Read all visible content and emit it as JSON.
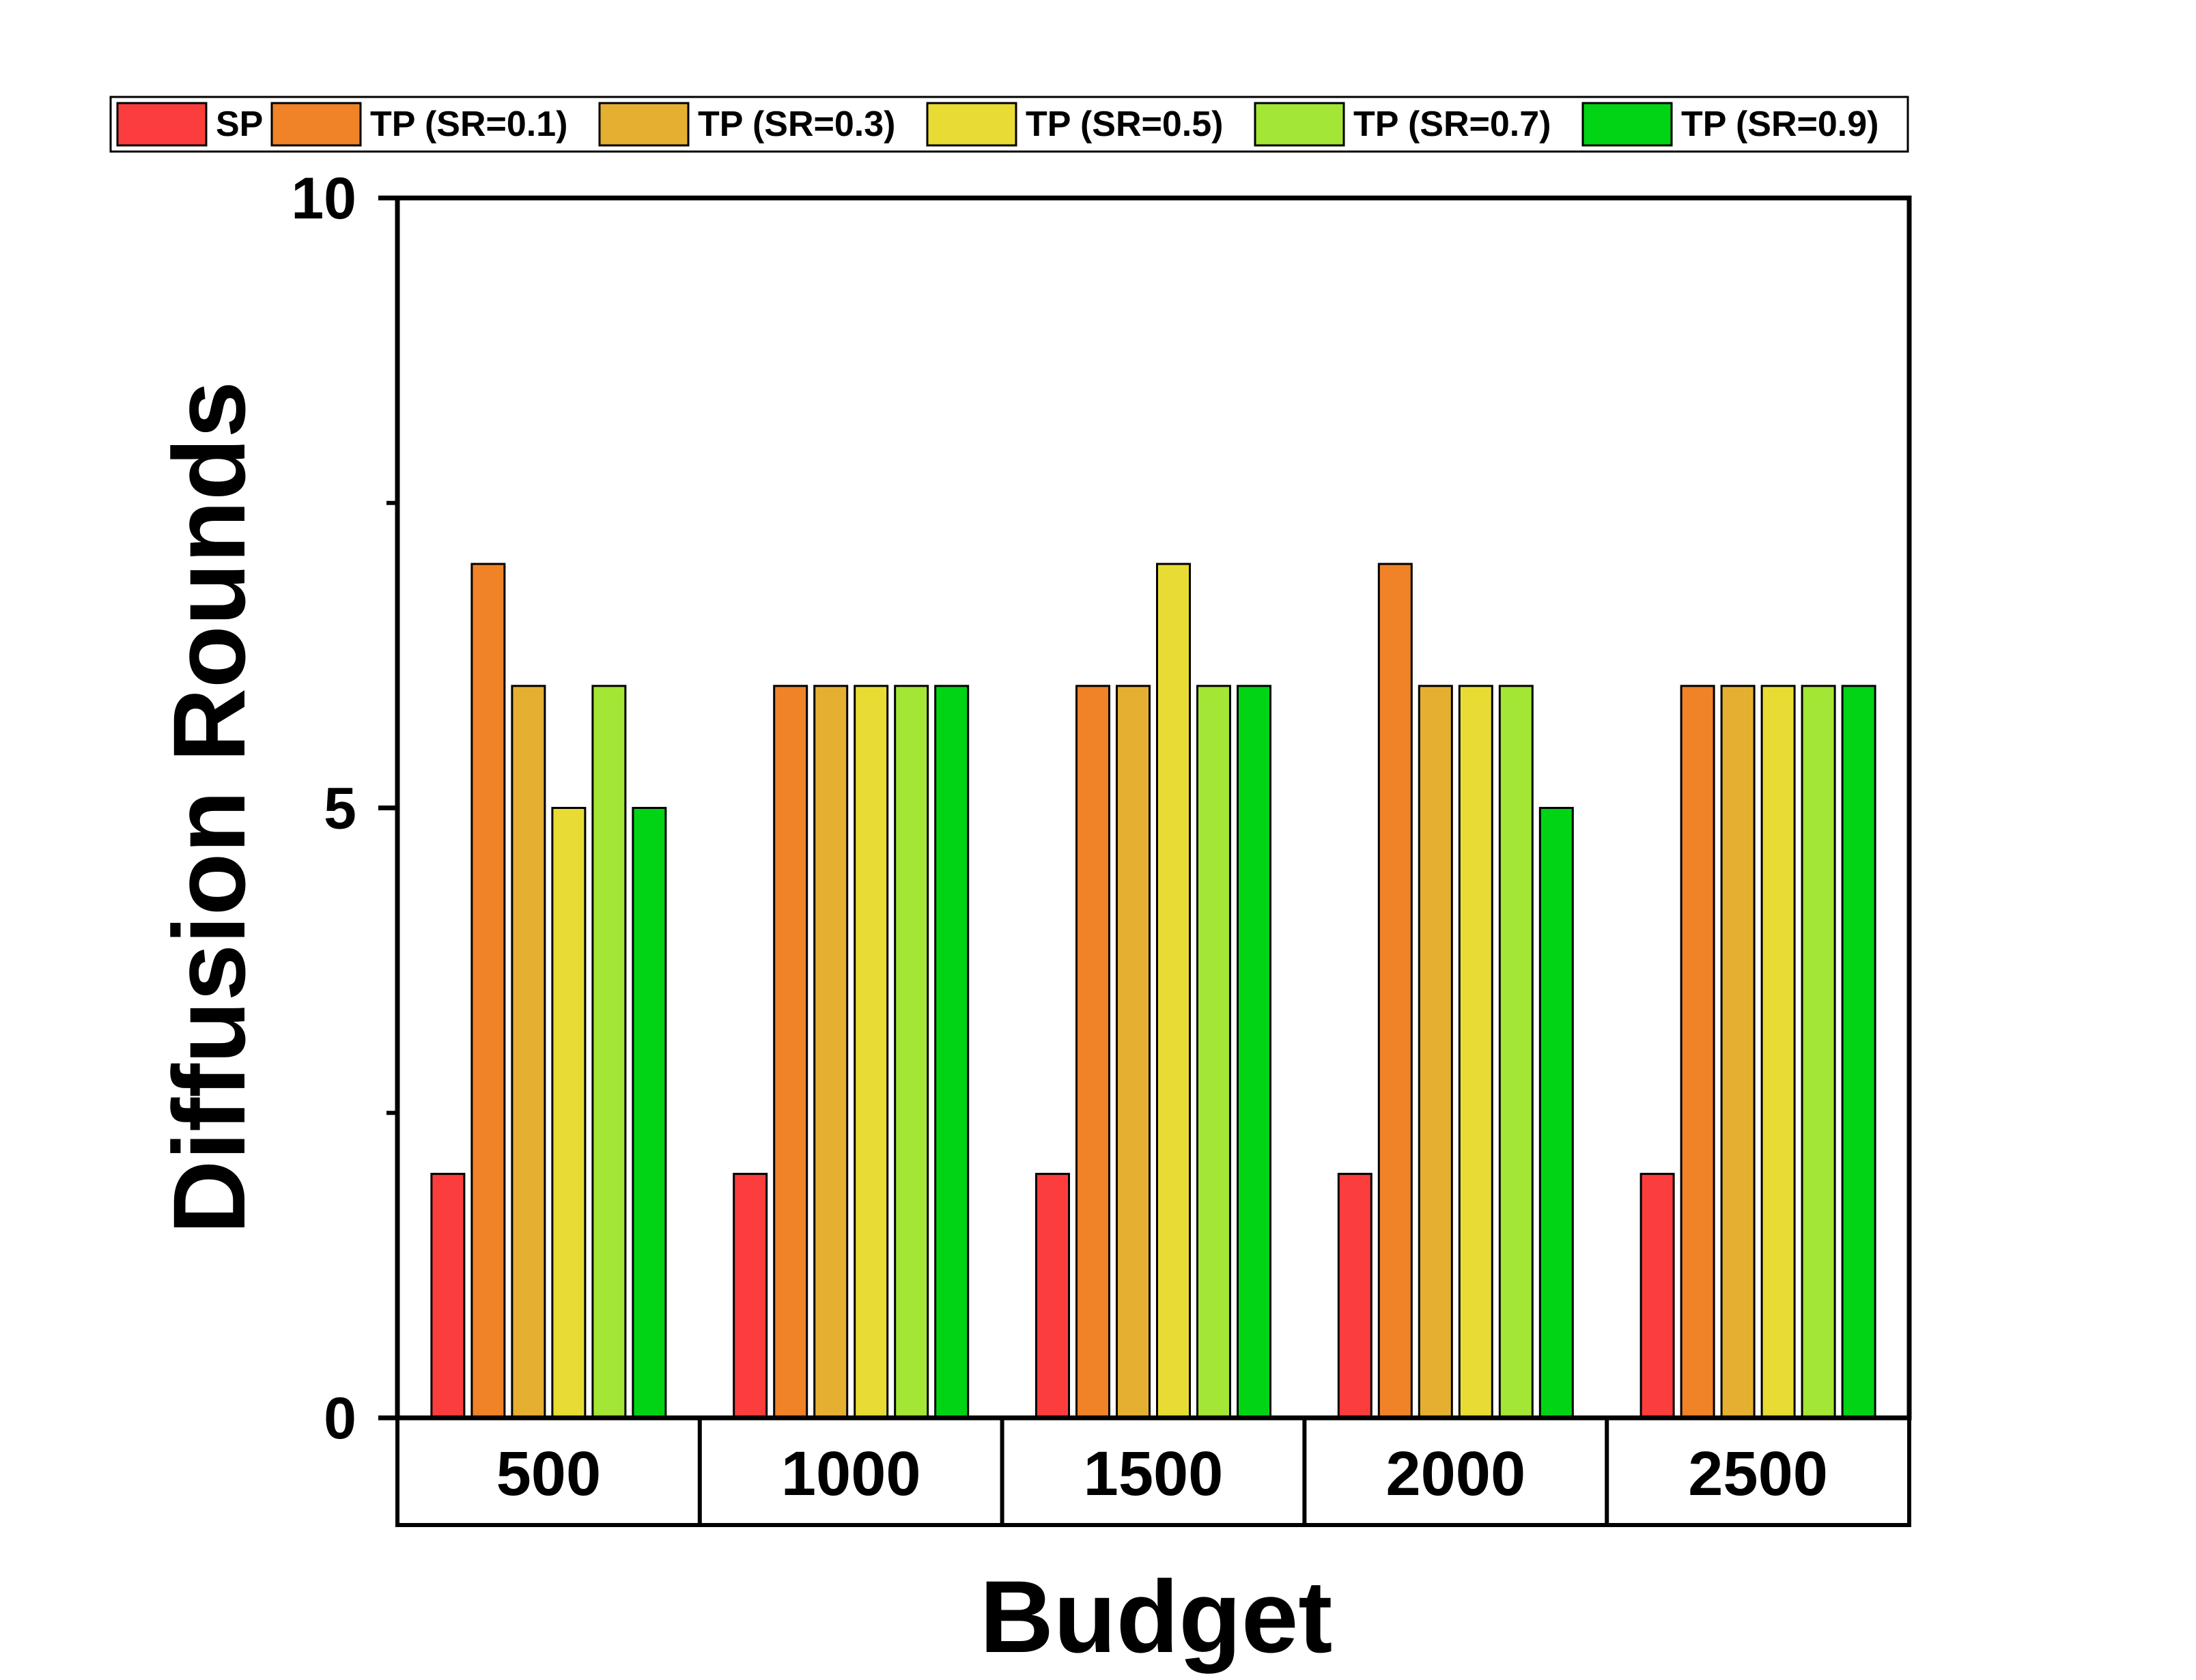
{
  "chart_data": {
    "type": "bar",
    "title": "",
    "xlabel": "Budget",
    "ylabel": "Diffusion Rounds",
    "ylim": [
      0,
      10
    ],
    "yticks": [
      0,
      5,
      10
    ],
    "yticks_minor": [
      2.5,
      7.5
    ],
    "legend_position": "top",
    "grid": false,
    "categories": [
      "500",
      "1000",
      "1500",
      "2000",
      "2500"
    ],
    "series": [
      {
        "name": "SP",
        "color": "#fc3d3d",
        "values": [
          2,
          2,
          2,
          2,
          2
        ]
      },
      {
        "name": "TP (SR=0.1)",
        "color": "#f08228",
        "values": [
          7,
          6,
          6,
          7,
          6
        ]
      },
      {
        "name": "TP (SR=0.3)",
        "color": "#e5b031",
        "values": [
          6,
          6,
          6,
          6,
          6
        ]
      },
      {
        "name": "TP (SR=0.5)",
        "color": "#e8dc34",
        "values": [
          5,
          6,
          7,
          6,
          6
        ]
      },
      {
        "name": "TP (SR=0.7)",
        "color": "#a3e635",
        "values": [
          6,
          6,
          6,
          6,
          6
        ]
      },
      {
        "name": "TP (SR=0.9)",
        "color": "#00d414",
        "values": [
          5,
          6,
          6,
          5,
          6
        ]
      }
    ]
  }
}
